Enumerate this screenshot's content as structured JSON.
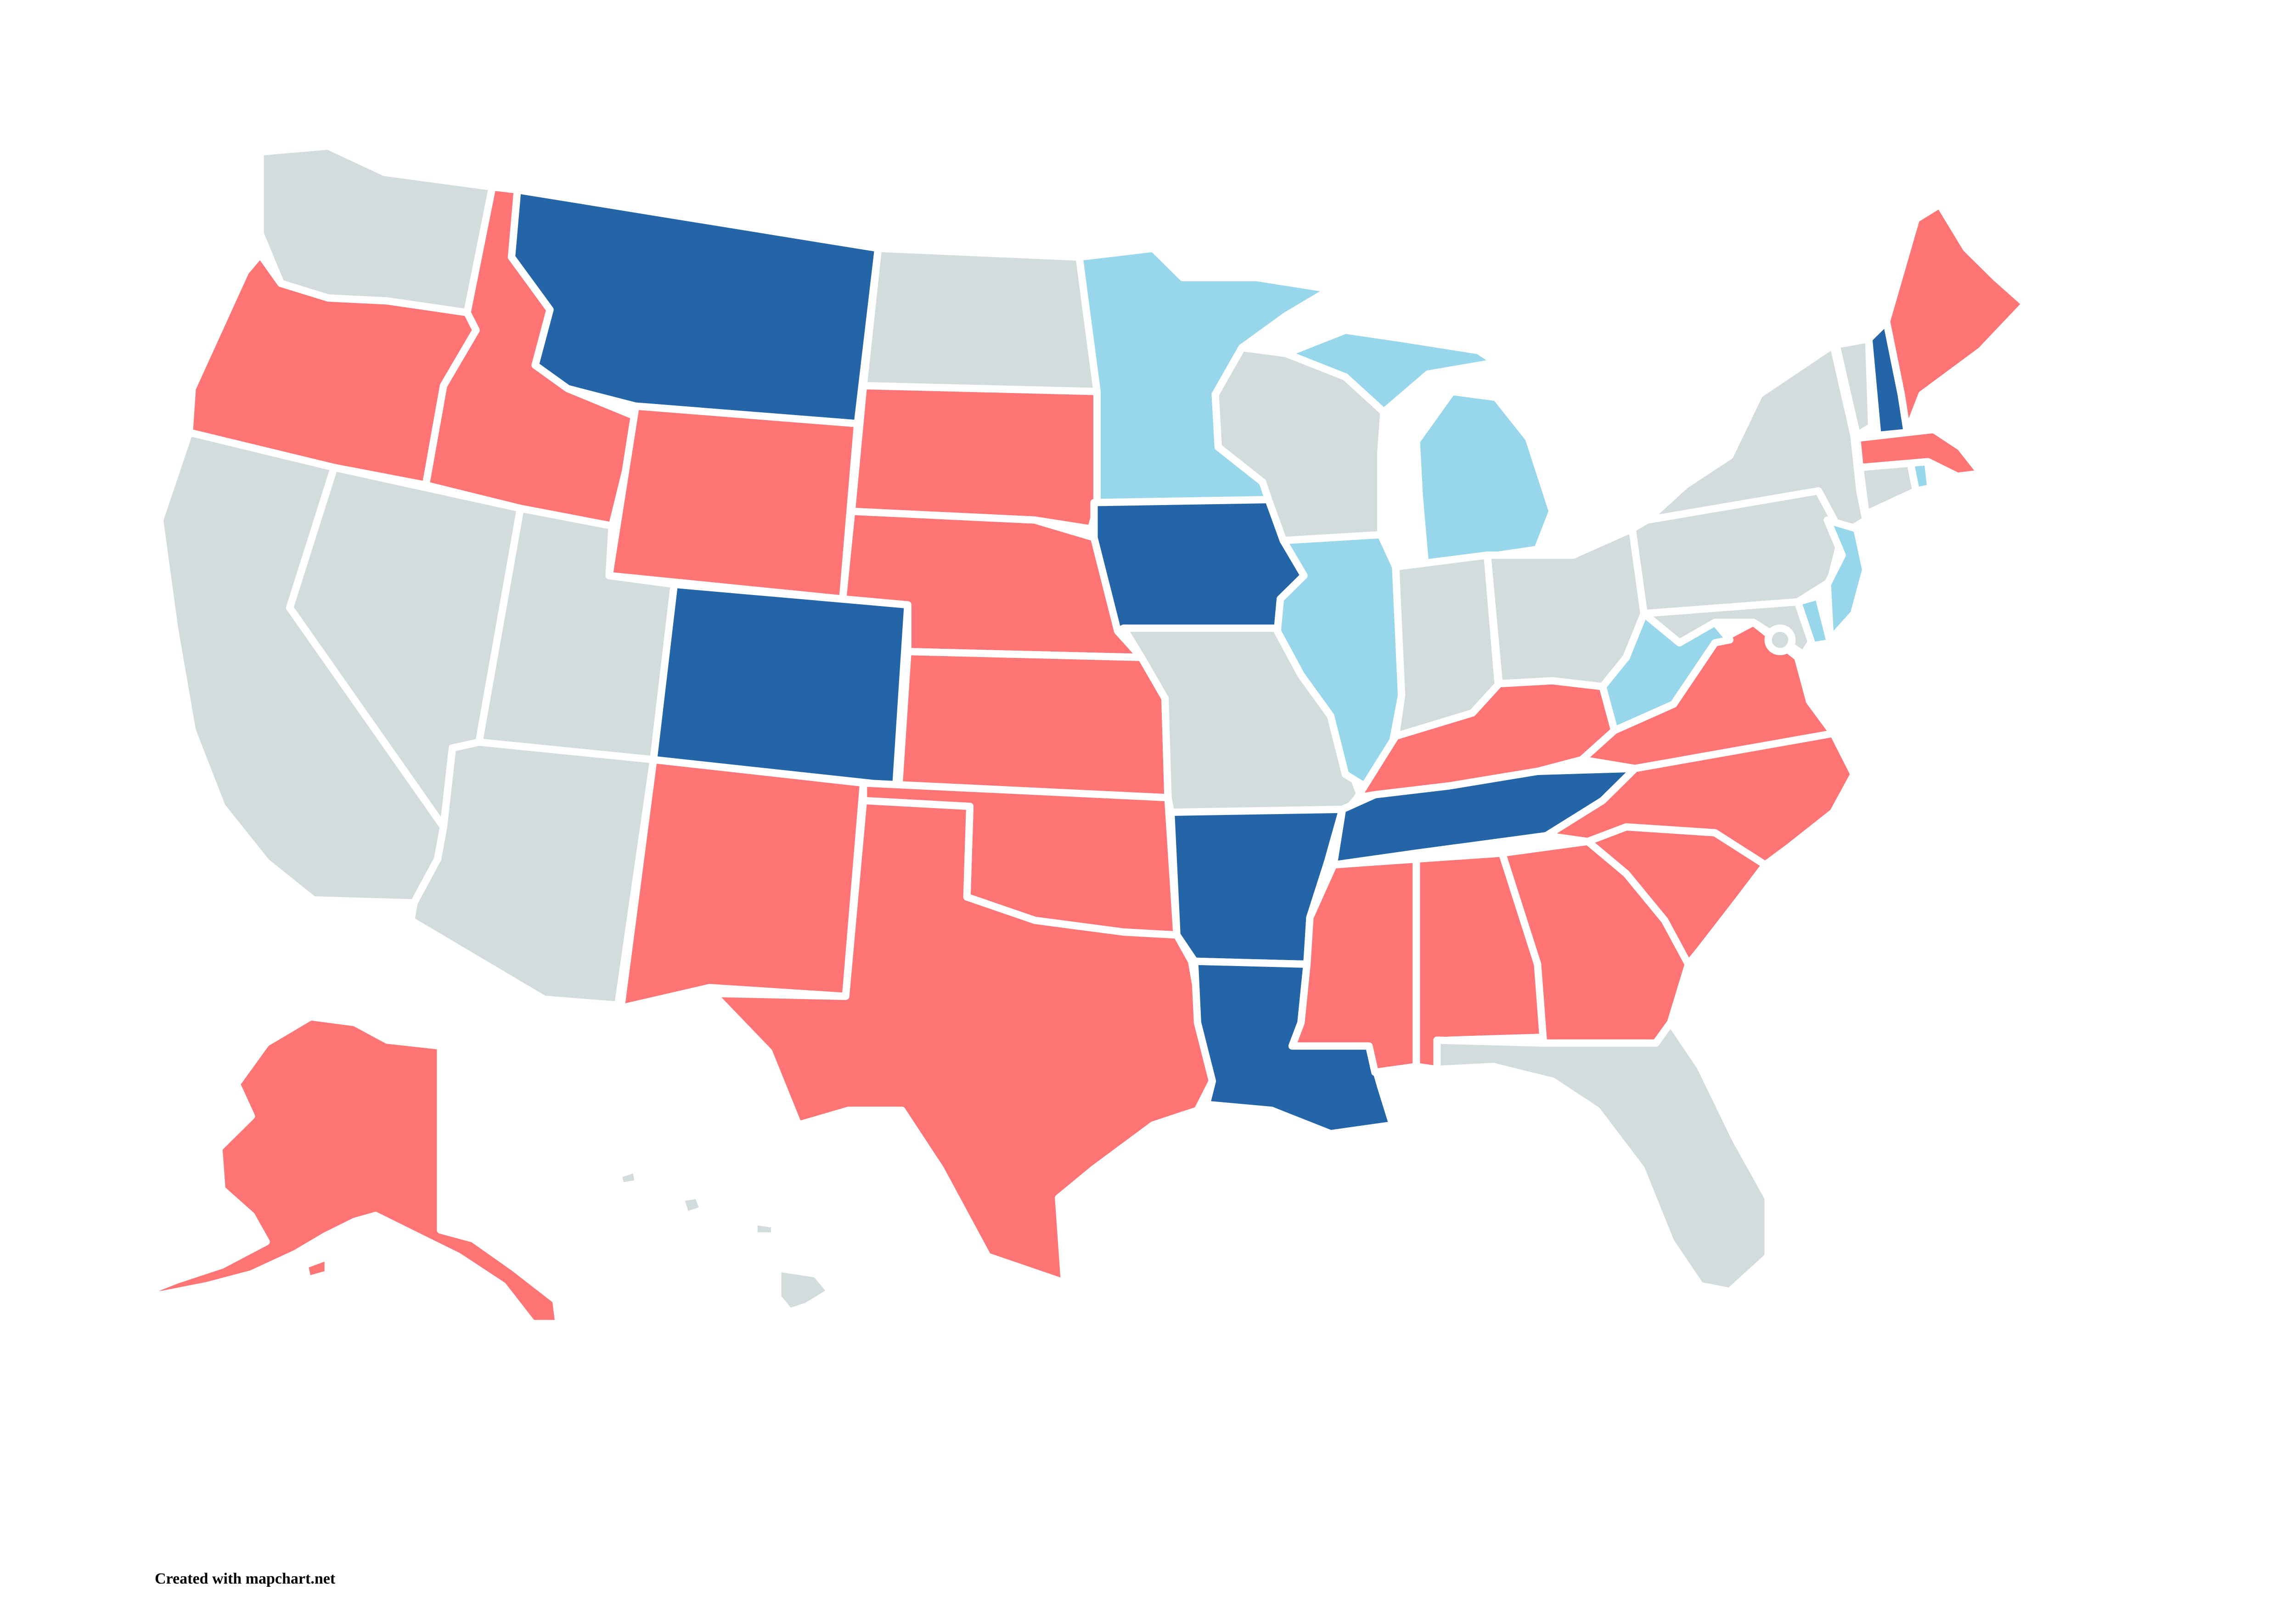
{
  "map": {
    "credit": "Created with mapchart.net",
    "palette": {
      "red": "#ff7575",
      "dark_blue": "#2465a8",
      "light_blue": "#97d6eb",
      "gray": "#d2dcdc"
    },
    "states": [
      {
        "code": "WA",
        "color": "gray"
      },
      {
        "code": "OR",
        "color": "red"
      },
      {
        "code": "CA",
        "color": "gray"
      },
      {
        "code": "NV",
        "color": "gray"
      },
      {
        "code": "ID",
        "color": "red"
      },
      {
        "code": "MT",
        "color": "dark_blue"
      },
      {
        "code": "WY",
        "color": "red"
      },
      {
        "code": "UT",
        "color": "gray"
      },
      {
        "code": "AZ",
        "color": "gray"
      },
      {
        "code": "CO",
        "color": "dark_blue"
      },
      {
        "code": "NM",
        "color": "red"
      },
      {
        "code": "ND",
        "color": "gray"
      },
      {
        "code": "SD",
        "color": "red"
      },
      {
        "code": "NE",
        "color": "red"
      },
      {
        "code": "KS",
        "color": "red"
      },
      {
        "code": "OK",
        "color": "red"
      },
      {
        "code": "TX",
        "color": "red"
      },
      {
        "code": "MN",
        "color": "light_blue"
      },
      {
        "code": "IA",
        "color": "dark_blue"
      },
      {
        "code": "MO",
        "color": "gray"
      },
      {
        "code": "AR",
        "color": "dark_blue"
      },
      {
        "code": "LA",
        "color": "dark_blue"
      },
      {
        "code": "WI",
        "color": "gray"
      },
      {
        "code": "IL",
        "color": "light_blue"
      },
      {
        "code": "MI",
        "color": "light_blue"
      },
      {
        "code": "IN",
        "color": "gray"
      },
      {
        "code": "OH",
        "color": "gray"
      },
      {
        "code": "KY",
        "color": "red"
      },
      {
        "code": "TN",
        "color": "dark_blue"
      },
      {
        "code": "MS",
        "color": "red"
      },
      {
        "code": "AL",
        "color": "red"
      },
      {
        "code": "GA",
        "color": "red"
      },
      {
        "code": "FL",
        "color": "gray"
      },
      {
        "code": "SC",
        "color": "red"
      },
      {
        "code": "NC",
        "color": "red"
      },
      {
        "code": "VA",
        "color": "red"
      },
      {
        "code": "WV",
        "color": "light_blue"
      },
      {
        "code": "PA",
        "color": "gray"
      },
      {
        "code": "NY",
        "color": "gray"
      },
      {
        "code": "MD",
        "color": "gray"
      },
      {
        "code": "DE",
        "color": "light_blue"
      },
      {
        "code": "NJ",
        "color": "light_blue"
      },
      {
        "code": "CT",
        "color": "gray"
      },
      {
        "code": "RI",
        "color": "light_blue"
      },
      {
        "code": "MA",
        "color": "red"
      },
      {
        "code": "VT",
        "color": "gray"
      },
      {
        "code": "NH",
        "color": "dark_blue"
      },
      {
        "code": "ME",
        "color": "red"
      },
      {
        "code": "DC",
        "color": "gray"
      },
      {
        "code": "AK",
        "color": "red"
      },
      {
        "code": "HI",
        "color": "gray"
      }
    ]
  }
}
